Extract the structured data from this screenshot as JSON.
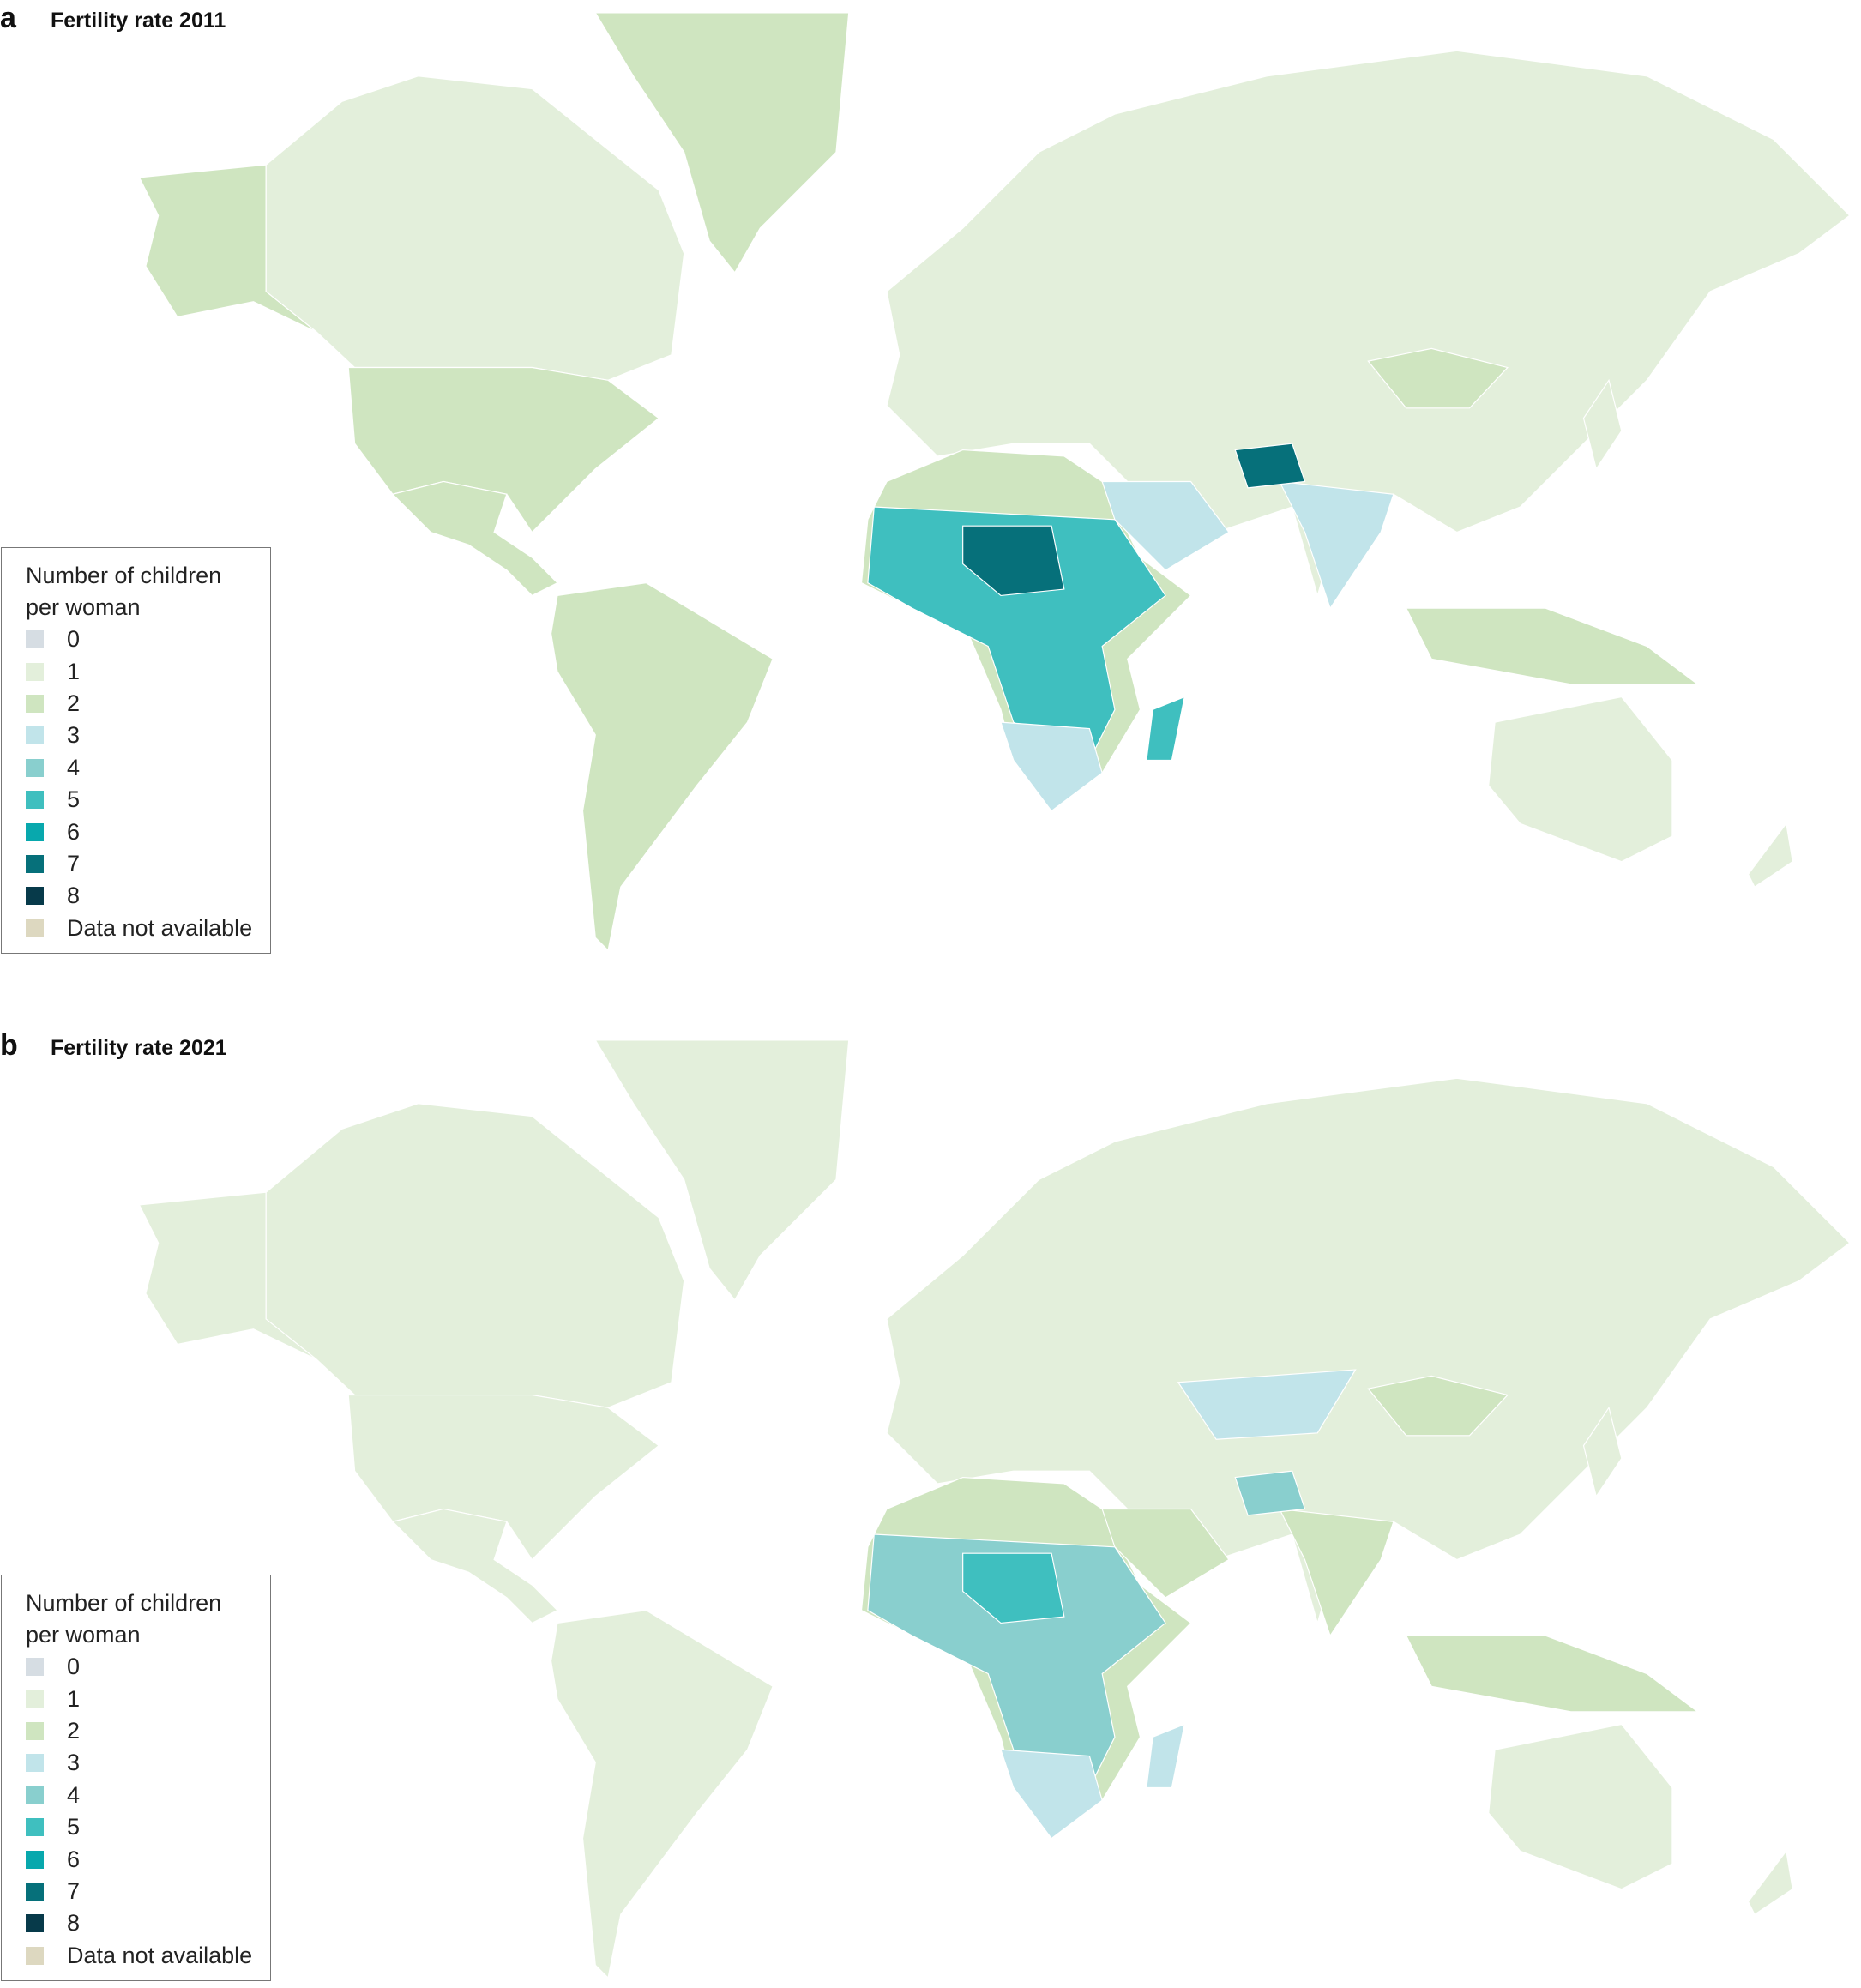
{
  "panels": [
    {
      "label": "a",
      "title": "Fertility rate 2011",
      "legend": {
        "title": "Number of children per woman",
        "items": [
          {
            "label": "0",
            "color": "#d6dde3"
          },
          {
            "label": "1",
            "color": "#e3efdb"
          },
          {
            "label": "2",
            "color": "#cfe5c0"
          },
          {
            "label": "3",
            "color": "#c1e4ea"
          },
          {
            "label": "4",
            "color": "#89cfce"
          },
          {
            "label": "5",
            "color": "#3fbfbf"
          },
          {
            "label": "6",
            "color": "#08a8ad"
          },
          {
            "label": "7",
            "color": "#06707a"
          },
          {
            "label": "8",
            "color": "#073a4a"
          },
          {
            "label": "Data not available",
            "color": "#ddd8c0"
          }
        ]
      }
    },
    {
      "label": "b",
      "title": "Fertility rate 2021",
      "legend": {
        "title": "Number of children per woman",
        "items": [
          {
            "label": "0",
            "color": "#d6dde3"
          },
          {
            "label": "1",
            "color": "#e3efdb"
          },
          {
            "label": "2",
            "color": "#cfe5c0"
          },
          {
            "label": "3",
            "color": "#c1e4ea"
          },
          {
            "label": "4",
            "color": "#89cfce"
          },
          {
            "label": "5",
            "color": "#3fbfbf"
          },
          {
            "label": "6",
            "color": "#08a8ad"
          },
          {
            "label": "7",
            "color": "#06707a"
          },
          {
            "label": "8",
            "color": "#073a4a"
          },
          {
            "label": "Data not available",
            "color": "#ddd8c0"
          }
        ]
      }
    }
  ]
}
